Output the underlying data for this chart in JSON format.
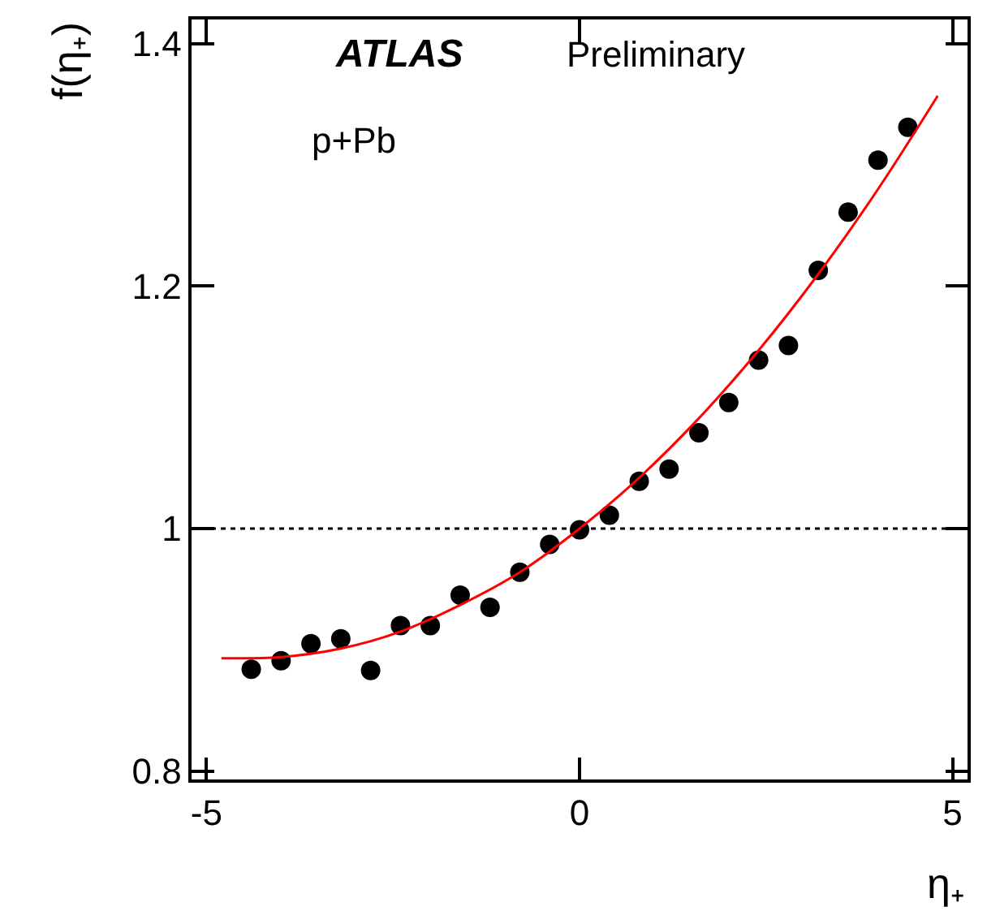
{
  "chart_data": {
    "type": "scatter",
    "xlabel": "η₊",
    "ylabel": "f(η₊)",
    "annotations": [
      "ATLAS",
      "Preliminary",
      "p+Pb"
    ],
    "xlim": [
      -5.2,
      5.2
    ],
    "ylim": [
      0.793,
      1.42
    ],
    "xticks": [
      -5,
      0,
      5
    ],
    "yticks": [
      {
        "value": 0.8,
        "label": "0.8"
      },
      {
        "value": 1,
        "label": "1"
      },
      {
        "value": 1.2,
        "label": "1.2"
      },
      {
        "value": 1.4,
        "label": "1.4"
      }
    ],
    "marker": "circle",
    "ref_lines": [
      {
        "axis": "y",
        "value": 1,
        "label": null,
        "color": "#000000",
        "line_style": "dotted"
      }
    ],
    "series": [
      {
        "color": "#000000",
        "x": [
          -4.4,
          -4.0,
          -3.6,
          -3.2,
          -2.8,
          -2.4,
          -2.0,
          -1.6,
          -1.2,
          -0.8,
          -0.4,
          0,
          0.4,
          0.8,
          1.2,
          1.6,
          2.0,
          2.4,
          2.8,
          3.2,
          3.6,
          4.0,
          4.4
        ],
        "values": [
          0.884,
          0.891,
          0.905,
          0.909,
          0.883,
          0.92,
          0.92,
          0.945,
          0.935,
          0.964,
          0.987,
          0.999,
          1.011,
          1.039,
          1.049,
          1.079,
          1.104,
          1.139,
          1.151,
          1.213,
          1.261,
          1.304,
          1.331
        ]
      },
      {
        "type": "line",
        "color": "#ff0000",
        "marker": "none",
        "x": [
          -4.8,
          -4.0,
          -3.2,
          -2.4,
          -1.6,
          -0.8,
          0,
          0.8,
          1.6,
          2.4,
          3.2,
          4.0,
          4.8
        ],
        "values": [
          0.893,
          0.894,
          0.901,
          0.915,
          0.937,
          0.964,
          1.0,
          1.042,
          1.091,
          1.147,
          1.21,
          1.28,
          1.357
        ]
      }
    ]
  }
}
